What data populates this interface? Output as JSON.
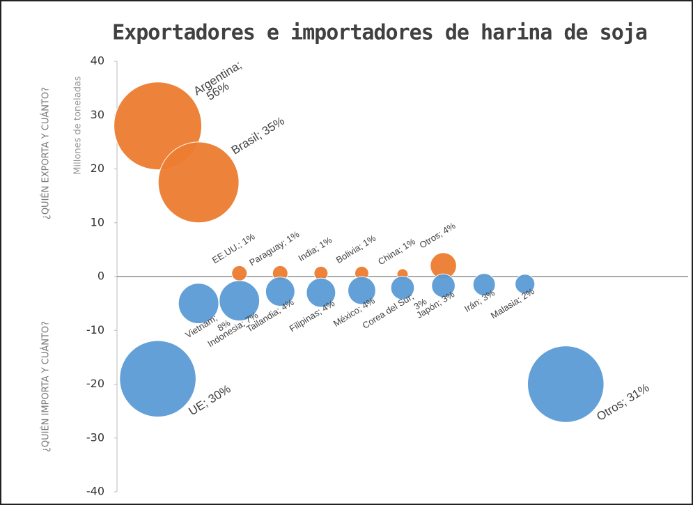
{
  "chart_data": {
    "type": "bubble",
    "title": "Exportadores e importadores de harina de soja",
    "y_label": "Millones de toneladas",
    "annotations": [
      "¿QUIÉN EXPORTA Y CUÁNTO?",
      "¿QUIÉN IMPORTA Y CUÁNTO?"
    ],
    "xlim": [
      0,
      14
    ],
    "ylim": [
      -40,
      40
    ],
    "yticks": [
      -40,
      -30,
      -20,
      -10,
      0,
      10,
      20,
      30,
      40
    ],
    "series": [
      {
        "color": "#ed7d31",
        "x": [
          1,
          2,
          3,
          4,
          5,
          6,
          7,
          8
        ],
        "values": [
          28,
          17.5,
          0.6,
          0.6,
          0.6,
          0.6,
          0.4,
          2
        ],
        "sizes": [
          28,
          23.7,
          0.85,
          0.85,
          0.7,
          0.7,
          0.45,
          2.5
        ],
        "labels": [
          [
            "Argentina;",
            "56%"
          ],
          [
            "Brasil; 35%"
          ],
          [
            "EE.UU.; 1%"
          ],
          [
            "Paraguay; 1%"
          ],
          [
            "India; 1%"
          ],
          [
            "Bolivia; 1%"
          ],
          [
            "China; 1%"
          ],
          [
            "Otros; 4%"
          ]
        ]
      },
      {
        "color": "#5b9bd5",
        "x": [
          1,
          2,
          3,
          4,
          5,
          6,
          7,
          8,
          9,
          10,
          11
        ],
        "values": [
          -19,
          -5,
          -4.5,
          -2.8,
          -3,
          -2.6,
          -2.1,
          -1.7,
          -1.5,
          -1.4,
          -20
        ],
        "sizes": [
          21.2,
          5.9,
          5.9,
          3.1,
          3.1,
          2.8,
          2,
          2,
          1.8,
          1.4,
          21.2
        ],
        "labels": [
          [
            "UE; 30%"
          ],
          [
            "Vietnam;",
            "8%"
          ],
          [
            "Indonesia; 7%"
          ],
          [
            "Tailandia; 4%"
          ],
          [
            "Filipinas; 4%"
          ],
          [
            "México; 4%"
          ],
          [
            "Corea del Sur;",
            "3%"
          ],
          [
            "Japón; 3%"
          ],
          [
            "Irán; 3%"
          ],
          [
            "Malasia; 2%"
          ],
          [
            "Otros; 31%"
          ]
        ]
      }
    ]
  }
}
